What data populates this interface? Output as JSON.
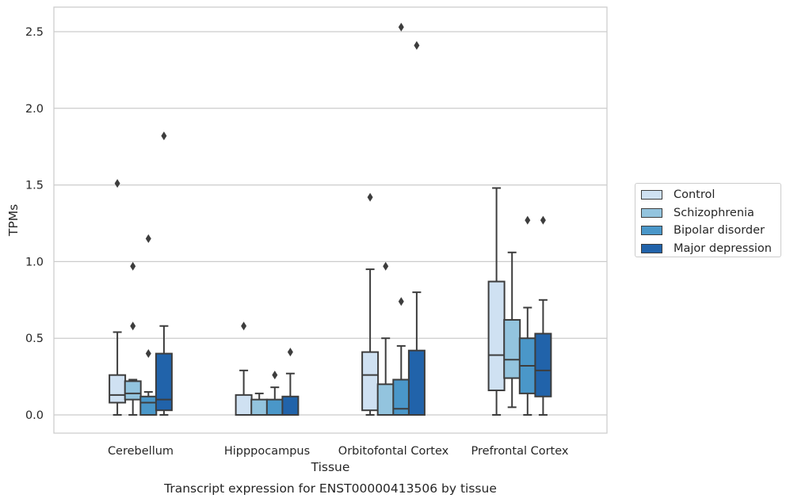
{
  "chart_data": {
    "type": "box",
    "title": "Transcript expression for ENST00000413506 by tissue",
    "xlabel": "Tissue",
    "ylabel": "TPMs",
    "ylim": [
      -0.12,
      2.66
    ],
    "yticks": [
      "0.0",
      "0.5",
      "1.0",
      "1.5",
      "2.0",
      "2.5"
    ],
    "ytick_values": [
      0,
      0.5,
      1.0,
      1.5,
      2.0,
      2.5
    ],
    "grid": true,
    "legend_position": "right",
    "categories": [
      "Cerebellum",
      "Hipppocampus",
      "Orbitofontal Cortex",
      "Prefrontal Cortex"
    ],
    "series": [
      {
        "name": "Control",
        "color": "#cfe1f2",
        "boxes": [
          {
            "whisker_low": 0.0,
            "q1": 0.08,
            "median": 0.13,
            "q3": 0.26,
            "whisker_high": 0.54,
            "outliers": [
              1.51
            ]
          },
          {
            "whisker_low": 0.0,
            "q1": 0.0,
            "median": 0.0,
            "q3": 0.13,
            "whisker_high": 0.29,
            "outliers": [
              0.58
            ]
          },
          {
            "whisker_low": 0.0,
            "q1": 0.03,
            "median": 0.26,
            "q3": 0.41,
            "whisker_high": 0.95,
            "outliers": [
              1.42
            ]
          },
          {
            "whisker_low": 0.0,
            "q1": 0.16,
            "median": 0.39,
            "q3": 0.87,
            "whisker_high": 1.48,
            "outliers": []
          }
        ]
      },
      {
        "name": "Schizophrenia",
        "color": "#93c4de",
        "boxes": [
          {
            "whisker_low": 0.0,
            "q1": 0.1,
            "median": 0.14,
            "q3": 0.22,
            "whisker_high": 0.23,
            "outliers": [
              0.97,
              0.58
            ]
          },
          {
            "whisker_low": 0.0,
            "q1": 0.0,
            "median": 0.0,
            "q3": 0.1,
            "whisker_high": 0.14,
            "outliers": []
          },
          {
            "whisker_low": 0.0,
            "q1": 0.0,
            "median": 0.0,
            "q3": 0.2,
            "whisker_high": 0.5,
            "outliers": [
              0.97
            ]
          },
          {
            "whisker_low": 0.05,
            "q1": 0.24,
            "median": 0.36,
            "q3": 0.62,
            "whisker_high": 1.06,
            "outliers": []
          }
        ]
      },
      {
        "name": "Bipolar disorder",
        "color": "#4a97c9",
        "boxes": [
          {
            "whisker_low": 0.0,
            "q1": 0.0,
            "median": 0.08,
            "q3": 0.12,
            "whisker_high": 0.15,
            "outliers": [
              1.15,
              0.4
            ]
          },
          {
            "whisker_low": 0.0,
            "q1": 0.0,
            "median": 0.0,
            "q3": 0.1,
            "whisker_high": 0.18,
            "outliers": [
              0.26
            ]
          },
          {
            "whisker_low": 0.0,
            "q1": 0.0,
            "median": 0.04,
            "q3": 0.23,
            "whisker_high": 0.45,
            "outliers": [
              2.53,
              0.74
            ]
          },
          {
            "whisker_low": 0.0,
            "q1": 0.14,
            "median": 0.32,
            "q3": 0.5,
            "whisker_high": 0.7,
            "outliers": [
              1.27
            ]
          }
        ]
      },
      {
        "name": "Major depression",
        "color": "#2163aa",
        "boxes": [
          {
            "whisker_low": 0.0,
            "q1": 0.03,
            "median": 0.1,
            "q3": 0.4,
            "whisker_high": 0.58,
            "outliers": [
              1.82
            ]
          },
          {
            "whisker_low": 0.0,
            "q1": 0.0,
            "median": 0.0,
            "q3": 0.12,
            "whisker_high": 0.27,
            "outliers": [
              0.41
            ]
          },
          {
            "whisker_low": 0.0,
            "q1": 0.0,
            "median": 0.0,
            "q3": 0.42,
            "whisker_high": 0.8,
            "outliers": [
              2.41
            ]
          },
          {
            "whisker_low": 0.0,
            "q1": 0.12,
            "median": 0.29,
            "q3": 0.53,
            "whisker_high": 0.75,
            "outliers": [
              1.27
            ]
          }
        ]
      }
    ]
  }
}
